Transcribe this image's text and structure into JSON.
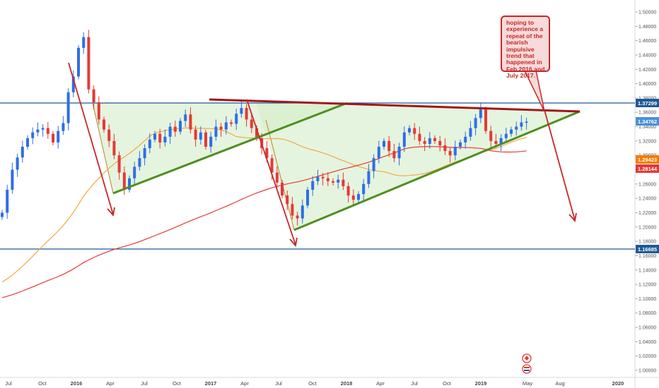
{
  "chart_data": {
    "type": "line",
    "title": "",
    "xlabel": "",
    "ylabel": "",
    "x_ticks": [
      "Jul",
      "Oct",
      "2016",
      "Apr",
      "Jul",
      "Oct",
      "2017",
      "Apr",
      "Jul",
      "Oct",
      "2018",
      "Apr",
      "Jul",
      "Oct",
      "2019",
      "May",
      "Aug",
      "2020"
    ],
    "y_ticks": [
      "1.50000",
      "1.48000",
      "1.46000",
      "1.44000",
      "1.42000",
      "1.40000",
      "1.38000",
      "1.36000",
      "1.34000",
      "1.32000",
      "1.30000",
      "1.28000",
      "1.26000",
      "1.24000",
      "1.22000",
      "1.20000",
      "1.18000",
      "1.16000",
      "1.14000",
      "1.12000",
      "1.10000",
      "1.08000",
      "1.06000",
      "1.04000",
      "1.02000",
      "1.00000"
    ],
    "ylim": [
      0.995,
      1.512
    ],
    "grid": false,
    "series": [
      {
        "values": [
          1.22,
          1.252,
          1.28,
          1.297,
          1.312,
          1.324,
          1.332,
          1.336,
          1.338,
          1.33,
          1.318,
          1.334,
          1.345,
          1.388,
          1.41,
          1.45,
          1.465,
          1.392,
          1.374,
          1.35,
          1.336,
          1.32,
          1.3,
          1.276,
          1.252,
          1.268,
          1.284,
          1.296,
          1.31,
          1.322,
          1.33,
          1.318,
          1.326,
          1.34,
          1.333,
          1.348,
          1.357,
          1.336,
          1.322,
          1.332,
          1.312,
          1.326,
          1.34,
          1.336,
          1.346,
          1.344,
          1.358,
          1.366,
          1.35,
          1.338,
          1.324,
          1.31,
          1.296,
          1.276,
          1.262,
          1.244,
          1.232,
          1.216,
          1.212,
          1.23,
          1.252,
          1.264,
          1.27,
          1.268,
          1.264,
          1.262,
          1.266,
          1.257,
          1.244,
          1.238,
          1.246,
          1.26,
          1.278,
          1.296,
          1.312,
          1.32,
          1.306,
          1.296,
          1.312,
          1.332,
          1.338,
          1.33,
          1.32,
          1.316,
          1.324,
          1.32,
          1.314,
          1.306,
          1.3,
          1.312,
          1.318,
          1.326,
          1.338,
          1.352,
          1.364,
          1.334,
          1.32,
          1.316,
          1.324,
          1.33,
          1.336,
          1.34,
          1.346,
          1.347
        ]
      }
    ],
    "moving_averages": [
      {
        "color": "#f5a742",
        "last_value": "1.29423"
      },
      {
        "color": "#e53935",
        "last_value": "1.28144"
      }
    ],
    "horizontal_levels": [
      {
        "value": 1.37299,
        "label": "1.37299",
        "color": "#1e5a96"
      },
      {
        "value": 1.16685,
        "label": "1.16685",
        "color": "#1e5a96"
      }
    ],
    "price_labels": [
      {
        "label": "1.34762",
        "color": "#4a90d9"
      },
      {
        "label": "1.29423",
        "color": "#f57c00"
      },
      {
        "label": "1.28144",
        "color": "#e53935"
      }
    ],
    "annotation": {
      "text": "hoping to experience a repeat of the bearish impulsive trend that happened in Feb 2016 and July 2017.",
      "color": "#c62828"
    },
    "colors": {
      "up_candle": "#2e6ee6",
      "down_candle": "#e53935",
      "wedge_fill": "#d4ecc8",
      "support_line": "#4f8f1f",
      "resistance_line": "#a01818",
      "arrow": "#c62828",
      "level_line": "#1e5a96"
    }
  }
}
